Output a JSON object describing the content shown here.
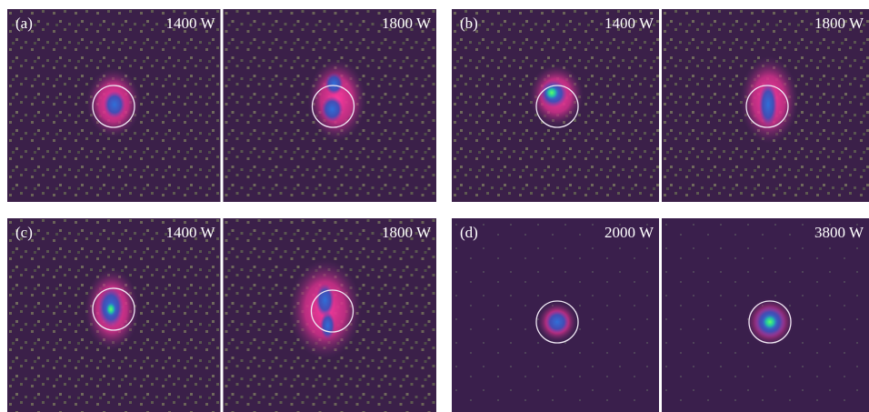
{
  "panels": [
    {
      "label": "(a)",
      "images": [
        {
          "power": "1400 W"
        },
        {
          "power": "1800 W"
        }
      ]
    },
    {
      "label": "(b)",
      "images": [
        {
          "power": "1400 W"
        },
        {
          "power": "1800 W"
        }
      ]
    },
    {
      "label": "(c)",
      "images": [
        {
          "power": "1400 W"
        },
        {
          "power": "1800 W"
        }
      ]
    },
    {
      "label": "(d)",
      "images": [
        {
          "power": "2000 W"
        },
        {
          "power": "3800 W"
        }
      ]
    }
  ]
}
